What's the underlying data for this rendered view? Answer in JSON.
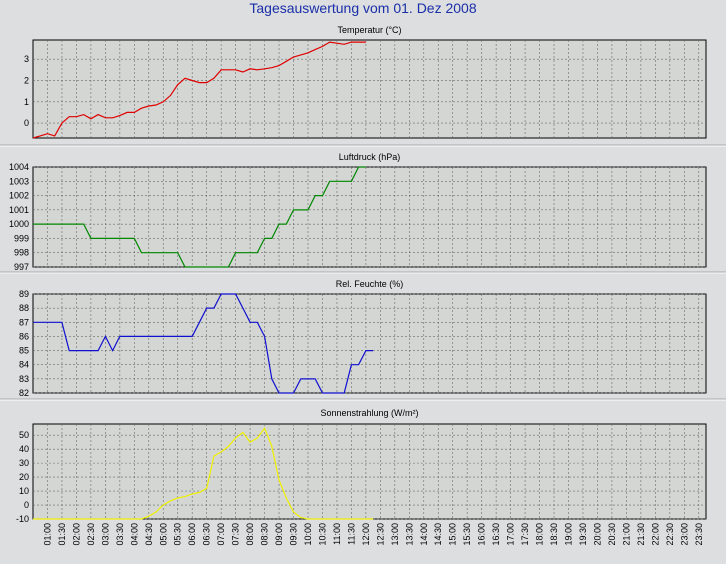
{
  "page_title": "Tagesauswertung vom 01. Dez 2008",
  "chart_data": [
    {
      "type": "line",
      "title": "Temperatur (°C)",
      "color": "#e00000",
      "ylim": [
        -0.7,
        3.9
      ],
      "yticks": [
        0,
        1,
        2,
        3
      ],
      "x_start": "00:30",
      "x_step_min": 15,
      "values": [
        -0.7,
        -0.6,
        -0.5,
        -0.6,
        0.0,
        0.3,
        0.3,
        0.4,
        0.2,
        0.4,
        0.25,
        0.25,
        0.35,
        0.5,
        0.5,
        0.7,
        0.8,
        0.85,
        1.0,
        1.3,
        1.8,
        2.1,
        2.0,
        1.9,
        1.9,
        2.1,
        2.5,
        2.5,
        2.5,
        2.4,
        2.55,
        2.5,
        2.55,
        2.6,
        2.7,
        2.9,
        3.1,
        3.2,
        3.3,
        3.45,
        3.6,
        3.8,
        3.75,
        3.7,
        3.8,
        3.8,
        3.8
      ]
    },
    {
      "type": "line",
      "title": "Luftdruck (hPa)",
      "color": "#008800",
      "ylim": [
        997,
        1004
      ],
      "yticks": [
        997,
        998,
        999,
        1000,
        1001,
        1002,
        1003,
        1004
      ],
      "x_start": "00:30",
      "x_step_min": 15,
      "values": [
        1000,
        1000,
        1000,
        1000,
        1000,
        1000,
        1000,
        1000,
        999,
        999,
        999,
        999,
        999,
        999,
        999,
        998,
        998,
        998,
        998,
        998,
        998,
        997,
        997,
        997,
        997,
        997,
        997,
        997,
        998,
        998,
        998,
        998,
        999,
        999,
        1000,
        1000,
        1001,
        1001,
        1001,
        1002,
        1002,
        1003,
        1003,
        1003,
        1003,
        1004,
        1004
      ]
    },
    {
      "type": "line",
      "title": "Rel. Feuchte (%)",
      "color": "#1010d0",
      "ylim": [
        82,
        89
      ],
      "yticks": [
        82,
        83,
        84,
        85,
        86,
        87,
        88,
        89
      ],
      "x_start": "00:30",
      "x_step_min": 15,
      "values": [
        87,
        87,
        87,
        87,
        87,
        85,
        85,
        85,
        85,
        85,
        86,
        85,
        86,
        86,
        86,
        86,
        86,
        86,
        86,
        86,
        86,
        86,
        86,
        87,
        88,
        88,
        89,
        89,
        89,
        88,
        87,
        87,
        86,
        83,
        82,
        82,
        82,
        83,
        83,
        83,
        82,
        82,
        82,
        82,
        84,
        84,
        85,
        85
      ]
    },
    {
      "type": "line",
      "title": "Sonnenstrahlung (W/m²)",
      "color": "#f0f000",
      "ylim": [
        -10,
        58
      ],
      "yticks": [
        -10,
        0,
        10,
        20,
        30,
        40,
        50
      ],
      "x_start": "00:30",
      "x_step_min": 15,
      "values": [
        -10,
        -10,
        -10,
        -10,
        -10,
        -10,
        -10,
        -10,
        -10,
        -10,
        -10,
        -10,
        -10,
        -10,
        -10,
        -10,
        -8,
        -5,
        0,
        3,
        5,
        6,
        8,
        9,
        12,
        35,
        38,
        42,
        48,
        52,
        45,
        48,
        55,
        42,
        18,
        5,
        -5,
        -9,
        -10,
        -10,
        -10,
        -10,
        -10,
        -10,
        -10,
        -10,
        -10,
        -10
      ]
    }
  ],
  "x_tick_labels": [
    "01:00",
    "01:30",
    "02:00",
    "02:30",
    "03:00",
    "03:30",
    "04:00",
    "04:30",
    "05:00",
    "05:30",
    "06:00",
    "06:30",
    "07:00",
    "07:30",
    "08:00",
    "08:30",
    "09:00",
    "09:30",
    "10:00",
    "10:30",
    "11:00",
    "11:30",
    "12:00",
    "12:30",
    "13:00",
    "13:30",
    "14:00",
    "14:30",
    "15:00",
    "15:30",
    "16:00",
    "16:30",
    "17:00",
    "17:30",
    "18:00",
    "18:30",
    "19:00",
    "19:30",
    "20:00",
    "20:30",
    "21:00",
    "21:30",
    "22:00",
    "22:30",
    "23:00",
    "23:30"
  ]
}
